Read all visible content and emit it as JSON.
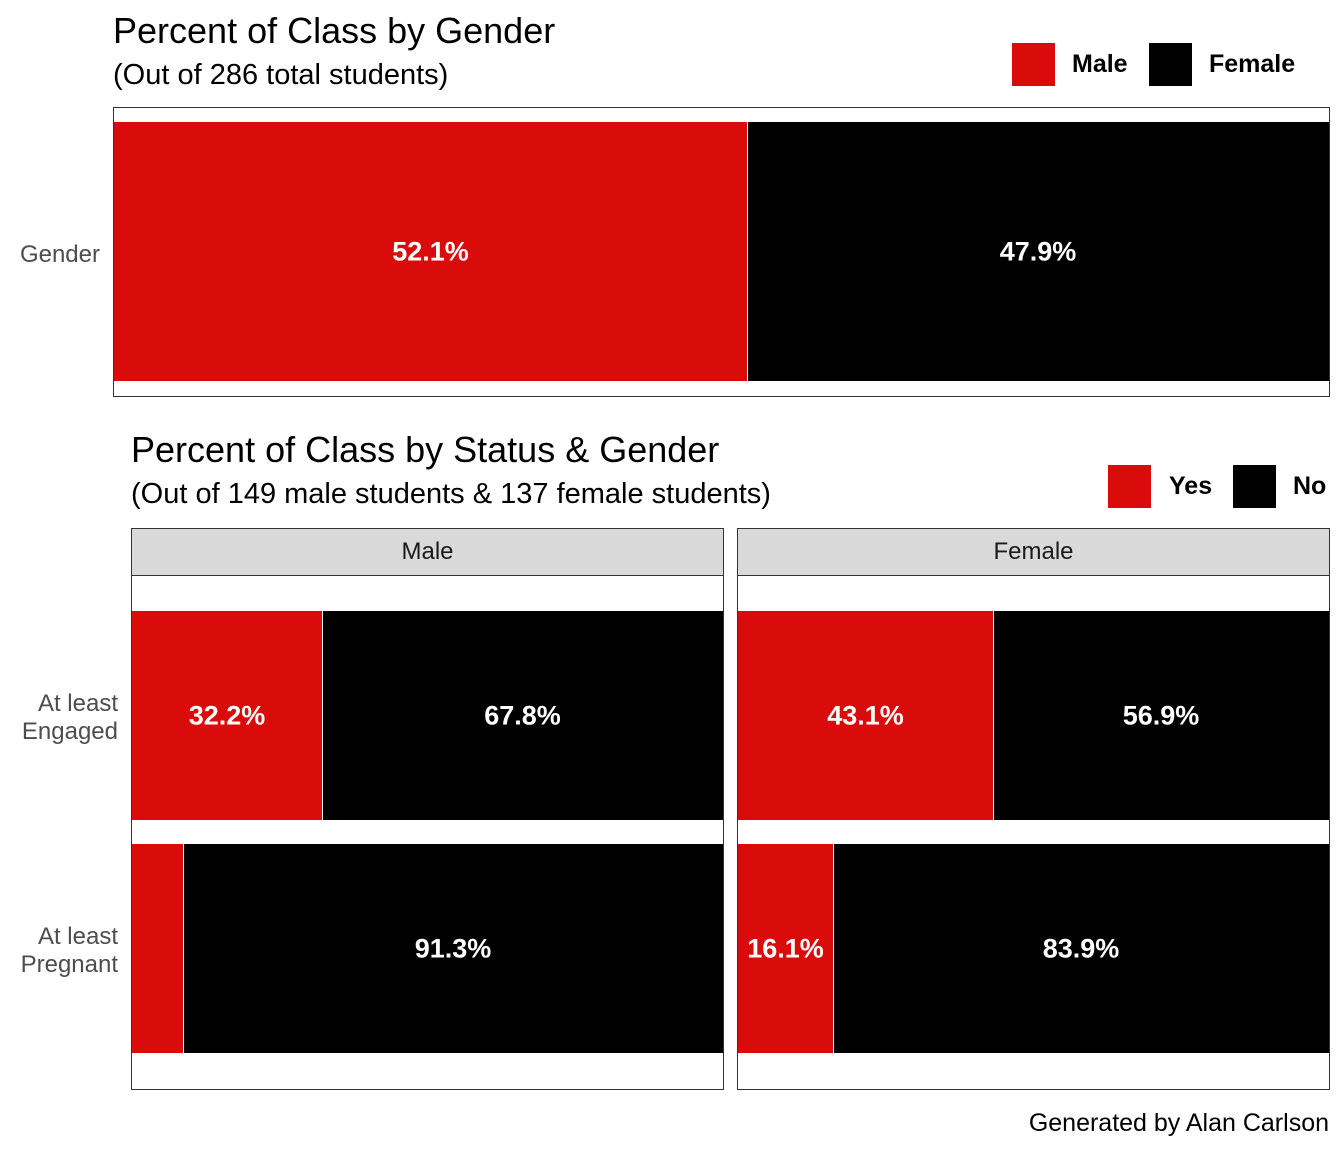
{
  "chart_data": [
    {
      "type": "bar",
      "orientation": "horizontal-stacked",
      "title": "Percent of Class by Gender",
      "subtitle": "(Out of 286 total students)",
      "legend": {
        "placement": "top-right",
        "entries": [
          "Male",
          "Female"
        ]
      },
      "categories": [
        "Gender"
      ],
      "series": [
        {
          "name": "Male",
          "color": "#d90b0b",
          "values": [
            52.1
          ],
          "labels": [
            "52.1%"
          ]
        },
        {
          "name": "Female",
          "color": "#000000",
          "values": [
            47.9
          ],
          "labels": [
            "47.9%"
          ]
        }
      ],
      "xlim": [
        0,
        100
      ]
    },
    {
      "type": "bar",
      "orientation": "horizontal-stacked",
      "title": "Percent of Class by Status & Gender",
      "subtitle": "(Out of 149 male students & 137 female students)",
      "legend": {
        "placement": "top-right",
        "entries": [
          "Yes",
          "No"
        ]
      },
      "categories": [
        "At least Engaged",
        "At least Pregnant"
      ],
      "category_lines": [
        [
          "At least",
          "Engaged"
        ],
        [
          "At least",
          "Pregnant"
        ]
      ],
      "facets": [
        {
          "name": "Male",
          "series": [
            {
              "name": "Yes",
              "color": "#d90b0b",
              "values": [
                32.2,
                8.7
              ],
              "labels": [
                "32.2%",
                ""
              ]
            },
            {
              "name": "No",
              "color": "#000000",
              "values": [
                67.8,
                91.3
              ],
              "labels": [
                "67.8%",
                "91.3%"
              ]
            }
          ]
        },
        {
          "name": "Female",
          "series": [
            {
              "name": "Yes",
              "color": "#d90b0b",
              "values": [
                43.1,
                16.1
              ],
              "labels": [
                "43.1%",
                "16.1%"
              ]
            },
            {
              "name": "No",
              "color": "#000000",
              "values": [
                56.9,
                83.9
              ],
              "labels": [
                "56.9%",
                "83.9%"
              ]
            }
          ]
        }
      ],
      "xlim": [
        0,
        100
      ]
    }
  ],
  "caption": "Generated by Alan Carlson"
}
